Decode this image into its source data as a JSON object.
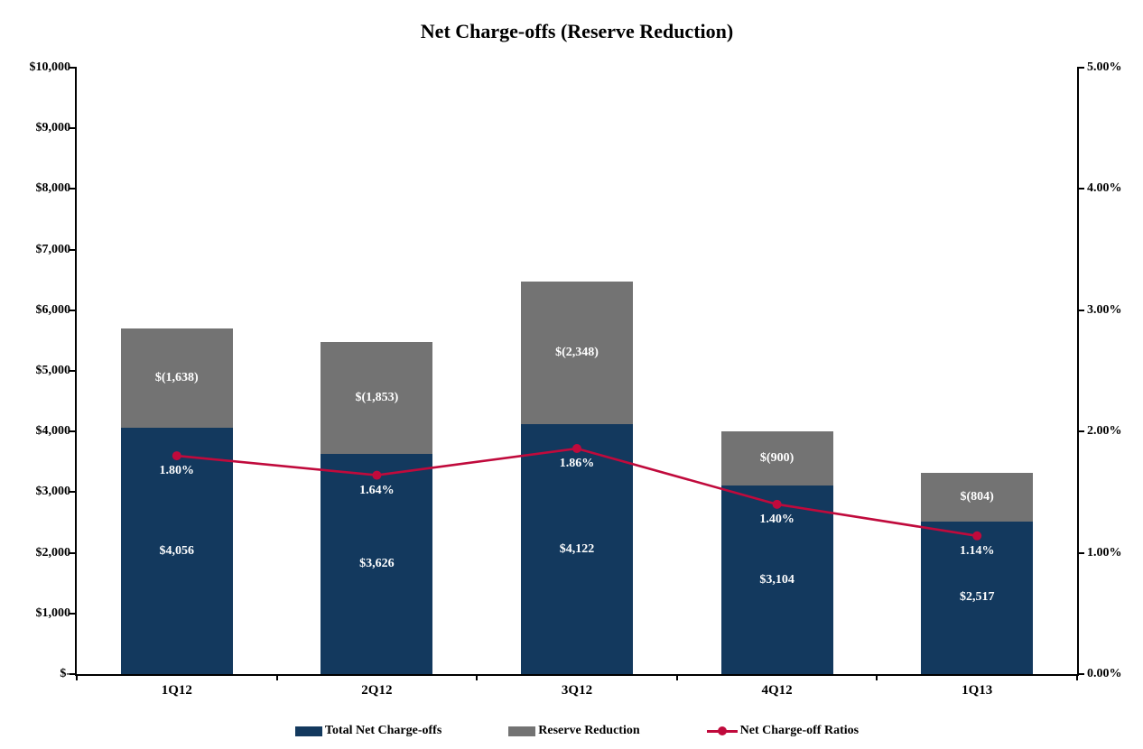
{
  "chart_data": {
    "type": "bar",
    "subtype": "stacked-bar-with-line-combo",
    "title": "Net Charge-offs (Reserve Reduction)",
    "categories": [
      "1Q12",
      "2Q12",
      "3Q12",
      "4Q12",
      "1Q13"
    ],
    "series": [
      {
        "name": "Total Net Charge-offs",
        "type": "bar",
        "axis": "left",
        "color": "#13395E",
        "values": [
          4056,
          3626,
          4122,
          3104,
          2517
        ],
        "labels": [
          "$4,056",
          "$3,626",
          "$4,122",
          "$3,104",
          "$2,517"
        ]
      },
      {
        "name": "Reserve Reduction",
        "type": "bar",
        "axis": "left",
        "color": "#737373",
        "values": [
          1638,
          1853,
          2348,
          900,
          804
        ],
        "labels": [
          "$(1,638)",
          "$(1,853)",
          "$(2,348)",
          "$(900)",
          "$(804)"
        ]
      },
      {
        "name": "Net Charge-off Ratios",
        "type": "line",
        "axis": "right",
        "color": "#C00A3C",
        "values": [
          1.8,
          1.64,
          1.86,
          1.4,
          1.14
        ],
        "labels": [
          "1.80%",
          "1.64%",
          "1.86%",
          "1.40%",
          "1.14%"
        ]
      }
    ],
    "left_axis": {
      "min": 0,
      "max": 10000,
      "tick_labels": [
        "$10,000",
        "$9,000",
        "$8,000",
        "$7,000",
        "$6,000",
        "$5,000",
        "$4,000",
        "$3,000",
        "$2,000",
        "$1,000",
        "$-"
      ]
    },
    "right_axis": {
      "min": 0,
      "max": 5,
      "tick_labels": [
        "5.00%",
        "4.00%",
        "3.00%",
        "2.00%",
        "1.00%",
        "0.00%"
      ]
    },
    "legend_position": "bottom",
    "grid": "off",
    "label_color_on_bars": "#ffffff"
  }
}
